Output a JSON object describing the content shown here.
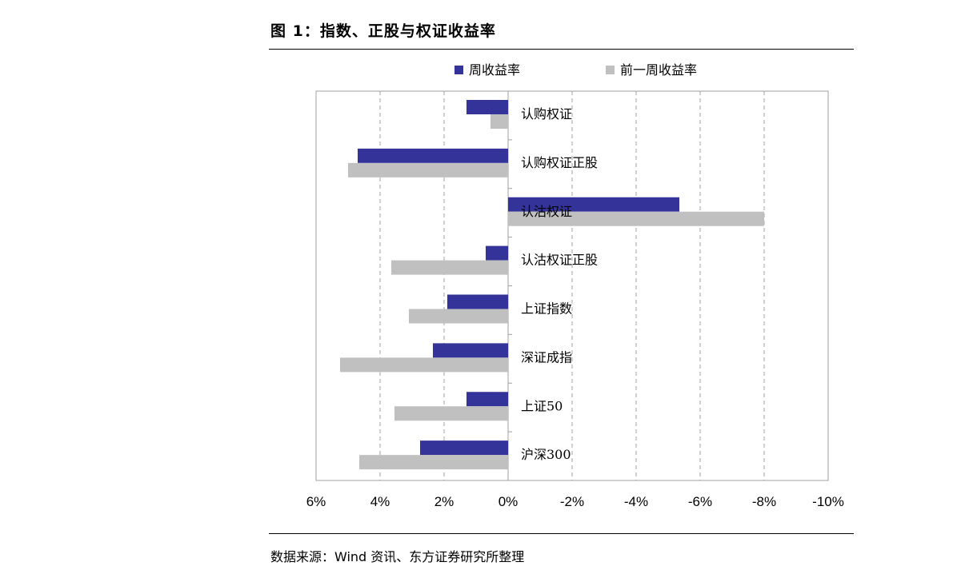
{
  "figure": {
    "title": "图 1：指数、正股与权证收益率",
    "source": "数据来源：Wind 资讯、东方证券研究所整理"
  },
  "colors": {
    "series_current": "#33339a",
    "series_previous": "#c0c0c0",
    "grid": "#a0a0a0",
    "frame": "#a0a0a0"
  },
  "chart_data": {
    "type": "bar",
    "orientation": "horizontal",
    "x_axis_reversed": true,
    "categories": [
      "认购权证",
      "认购权证正股",
      "认沽权证",
      "认沽权证正股",
      "上证指数",
      "深证成指",
      "上证50",
      "沪深300"
    ],
    "series": [
      {
        "name": "周收益率",
        "values": [
          1.3,
          4.7,
          -5.35,
          0.7,
          1.9,
          2.35,
          1.3,
          2.75
        ]
      },
      {
        "name": "前一周收益率",
        "values": [
          0.55,
          5.0,
          -8.0,
          3.65,
          3.1,
          5.25,
          3.55,
          4.65
        ]
      }
    ],
    "xlim": [
      6,
      -10
    ],
    "x_ticks": [
      "6%",
      "4%",
      "2%",
      "0%",
      "-2%",
      "-4%",
      "-6%",
      "-8%",
      "-10%"
    ],
    "x_tick_values": [
      6,
      4,
      2,
      0,
      -2,
      -4,
      -6,
      -8,
      -10
    ],
    "unit": "%",
    "grid": "vertical-dashed",
    "legend": "top-center"
  }
}
